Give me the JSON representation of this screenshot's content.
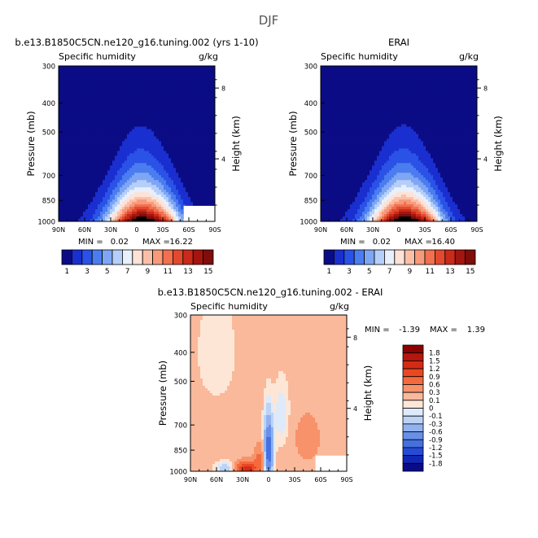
{
  "figure": {
    "title": "DJF"
  },
  "chart_data": [
    {
      "type": "heatmap",
      "id": "model",
      "title": "b.e13.B1850C5CN.ne120_g16.tuning.002 (yrs 1-10)",
      "left_label": "Specific humidity",
      "right_label": "g/kg",
      "xlabel": "",
      "ylabel": "Pressure (mb)",
      "y2label": "Height (km)",
      "x_ticks": [
        "90N",
        "60N",
        "30N",
        "0",
        "30S",
        "60S",
        "90S"
      ],
      "y_ticks": [
        "300",
        "400",
        "500",
        "700",
        "850",
        "1000"
      ],
      "y2_ticks": [
        "8",
        "4"
      ],
      "xlim": [
        90,
        -90
      ],
      "ylim": [
        1000,
        300
      ],
      "stats": {
        "min_label": "MIN =",
        "min": "0.02",
        "max_label": "MAX =",
        "max": "16.22"
      },
      "colorbar": {
        "orientation": "horizontal",
        "levels": [
          "1",
          "3",
          "5",
          "7",
          "9",
          "11",
          "13",
          "15"
        ],
        "colors": [
          "#0b0c85",
          "#1a2fd0",
          "#2b52e6",
          "#4b7df0",
          "#7ea6f4",
          "#b6cff9",
          "#e8f0fc",
          "#fde2d6",
          "#fbbfa8",
          "#f79a7b",
          "#f0704f",
          "#e24a2e",
          "#c92a1a",
          "#a3150e",
          "#7e0d0b"
        ]
      },
      "peak": 16.2,
      "masked_corner": true
    },
    {
      "type": "heatmap",
      "id": "obs",
      "title": "ERAI",
      "left_label": "Specific humidity",
      "right_label": "g/kg",
      "xlabel": "",
      "ylabel": "Pressure (mb)",
      "y2label": "Height (km)",
      "x_ticks": [
        "90N",
        "60N",
        "30N",
        "0",
        "30S",
        "60S",
        "90S"
      ],
      "y_ticks": [
        "300",
        "400",
        "500",
        "700",
        "850",
        "1000"
      ],
      "y2_ticks": [
        "8",
        "4"
      ],
      "xlim": [
        90,
        -90
      ],
      "ylim": [
        1000,
        300
      ],
      "stats": {
        "min_label": "MIN =",
        "min": "0.02",
        "max_label": "MAX =",
        "max": "16.40"
      },
      "colorbar": {
        "orientation": "horizontal",
        "levels": [
          "1",
          "3",
          "5",
          "7",
          "9",
          "11",
          "13",
          "15"
        ],
        "colors": [
          "#0b0c85",
          "#1a2fd0",
          "#2b52e6",
          "#4b7df0",
          "#7ea6f4",
          "#b6cff9",
          "#e8f0fc",
          "#fde2d6",
          "#fbbfa8",
          "#f79a7b",
          "#f0704f",
          "#e24a2e",
          "#c92a1a",
          "#a3150e",
          "#7e0d0b"
        ]
      },
      "peak": 16.4,
      "masked_corner": false
    },
    {
      "type": "heatmap",
      "id": "diff",
      "title": "b.e13.B1850C5CN.ne120_g16.tuning.002 - ERAI",
      "left_label": "Specific humidity",
      "right_label": "g/kg",
      "xlabel": "",
      "ylabel": "Pressure (mb)",
      "y2label": "Height (km)",
      "x_ticks": [
        "90N",
        "60N",
        "30N",
        "0",
        "30S",
        "60S",
        "90S"
      ],
      "y_ticks": [
        "300",
        "400",
        "500",
        "700",
        "850",
        "1000"
      ],
      "y2_ticks": [
        "8",
        "4"
      ],
      "xlim": [
        90,
        -90
      ],
      "ylim": [
        1000,
        300
      ],
      "stats": {
        "min_label": "MIN =",
        "min": "-1.39",
        "max_label": "MAX =",
        "max": "1.39"
      },
      "colorbar": {
        "orientation": "vertical",
        "levels": [
          "1.8",
          "1.5",
          "1.2",
          "0.9",
          "0.6",
          "0.3",
          "0.1",
          "0",
          "-0.1",
          "-0.3",
          "-0.6",
          "-0.9",
          "-1.2",
          "-1.5",
          "-1.8"
        ],
        "colors": [
          "#8b0000",
          "#b5160e",
          "#d42b16",
          "#e94822",
          "#f46a3c",
          "#f7926a",
          "#fab99b",
          "#fde6d6",
          "#deeafa",
          "#bcd3f6",
          "#92b2ef",
          "#6890e8",
          "#4570e0",
          "#254bd6",
          "#1027b5",
          "#0a0b87"
        ]
      },
      "masked_corner": true
    }
  ]
}
